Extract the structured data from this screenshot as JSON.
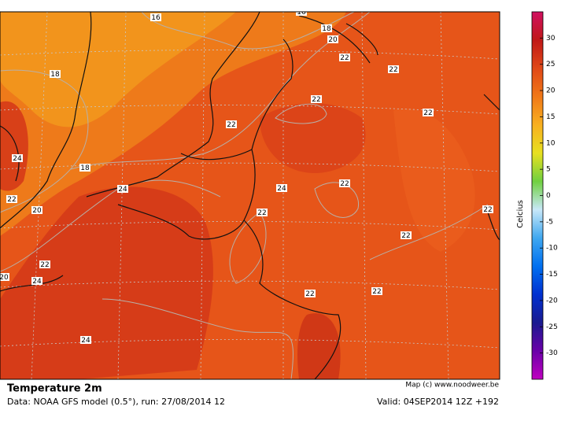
{
  "map": {
    "contour_labels": [
      16,
      16,
      18,
      20,
      22,
      22,
      18,
      22,
      22,
      22,
      24,
      18,
      24,
      24,
      22,
      22,
      20,
      22,
      22,
      22,
      22,
      20,
      24,
      22,
      22,
      24
    ],
    "credit": "Map (c) www.noodweer.be"
  },
  "colorbar": {
    "label": "Celcius",
    "range": [
      -35,
      35
    ],
    "ticks": [
      30,
      25,
      20,
      15,
      10,
      5,
      0,
      -5,
      -10,
      -15,
      -20,
      -25,
      -30
    ],
    "colors": [
      "#c000c0",
      "#6a00a8",
      "#1a1a90",
      "#0030d0",
      "#0070f0",
      "#40a8f0",
      "#c8e8f8",
      "#70d040",
      "#e8e020",
      "#f8b020",
      "#f07818",
      "#e04818",
      "#c01818",
      "#d01060"
    ]
  },
  "footer": {
    "title": "Temperature 2m",
    "source": "Data: NOAA GFS model (0.5°), run: 27/08/2014 12",
    "valid": "Valid: 04SEP2014 12Z +192"
  }
}
